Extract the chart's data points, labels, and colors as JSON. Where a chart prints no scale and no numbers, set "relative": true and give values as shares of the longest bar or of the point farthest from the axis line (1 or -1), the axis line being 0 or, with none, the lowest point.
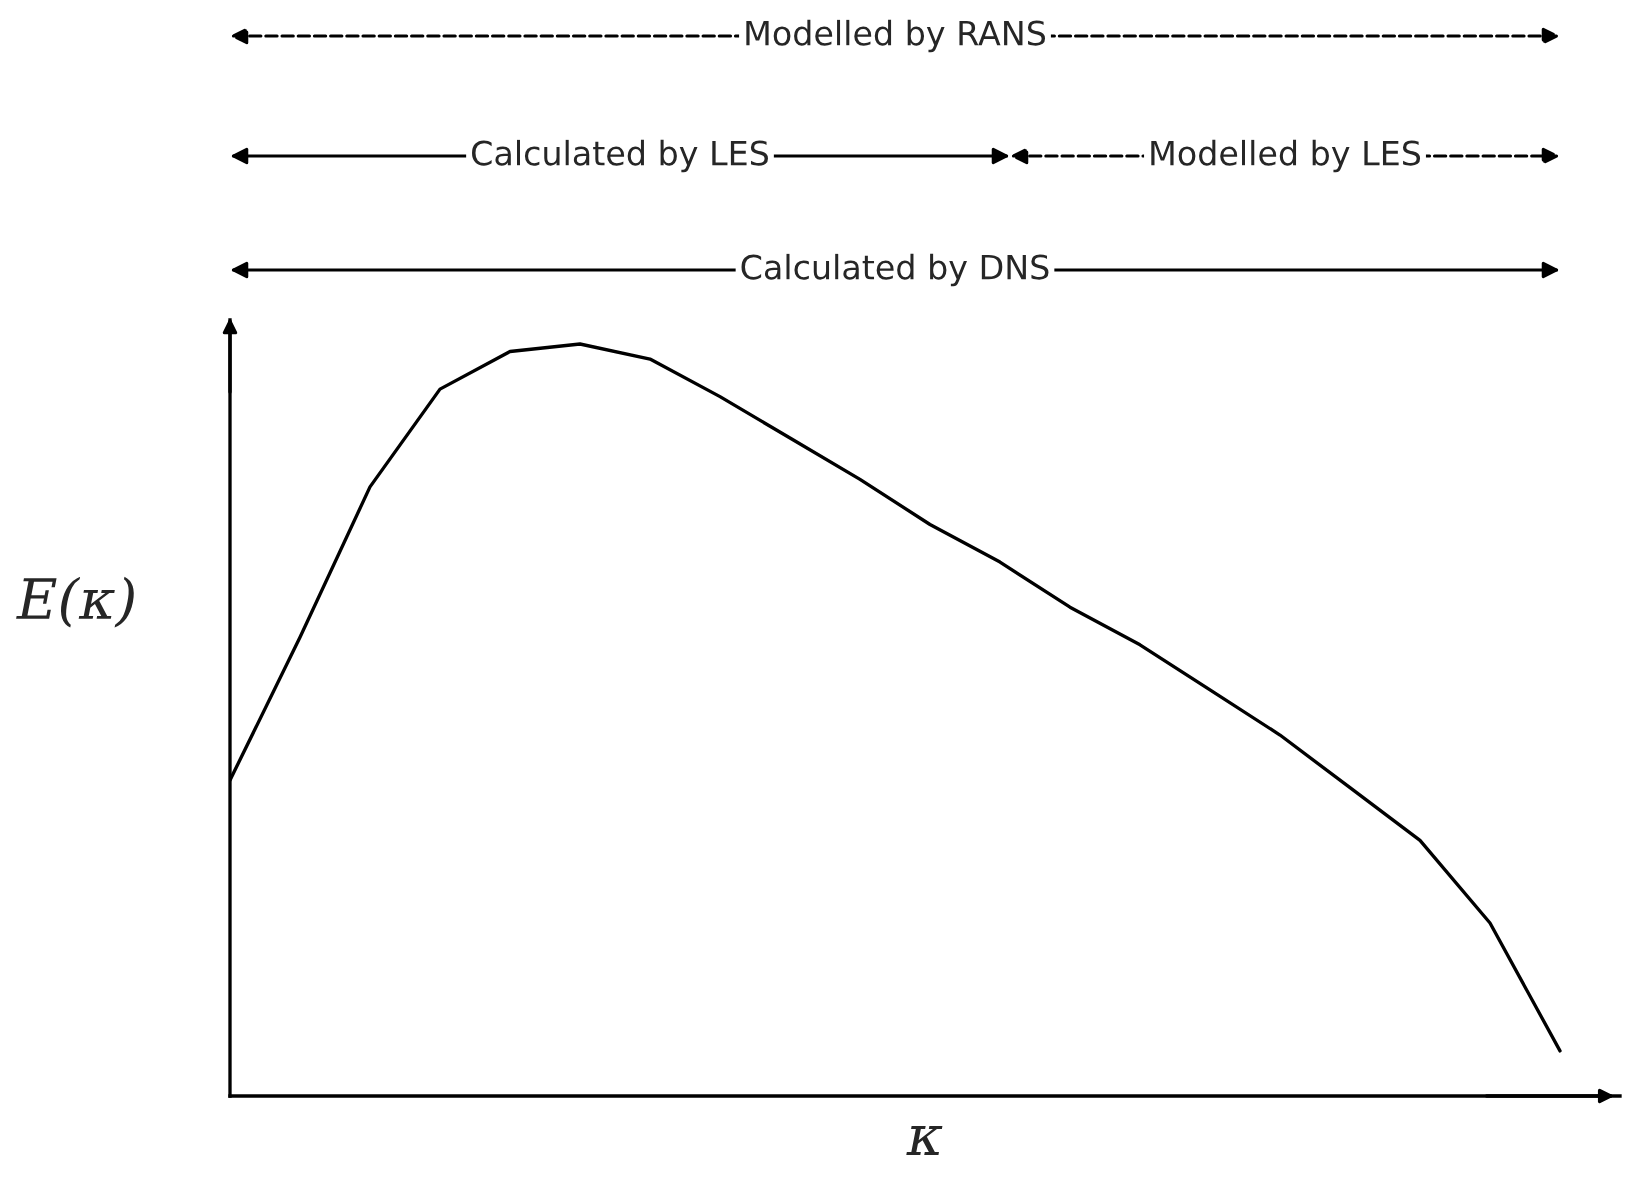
{
  "chart_data": {
    "type": "line",
    "relative": true,
    "xlabel": "κ",
    "ylabel": "E(κ)",
    "color": "#000000",
    "marker": "none",
    "line_style": "solid",
    "legend": false,
    "categories": [
      null,
      null,
      null,
      null,
      null,
      null,
      null,
      null,
      null,
      null,
      null,
      null,
      null,
      null,
      null,
      null,
      null,
      null,
      null,
      null
    ],
    "values": [
      0.42,
      0.61,
      0.81,
      0.94,
      0.99,
      1.0,
      0.98,
      0.93,
      0.875,
      0.82,
      0.76,
      0.71,
      0.65,
      0.6,
      0.54,
      0.48,
      0.41,
      0.34,
      0.23,
      0.06
    ],
    "annotations": [
      "Modelled by RANS",
      "Calculated by LES",
      "Modelled by LES",
      "Calculated by DNS"
    ]
  }
}
